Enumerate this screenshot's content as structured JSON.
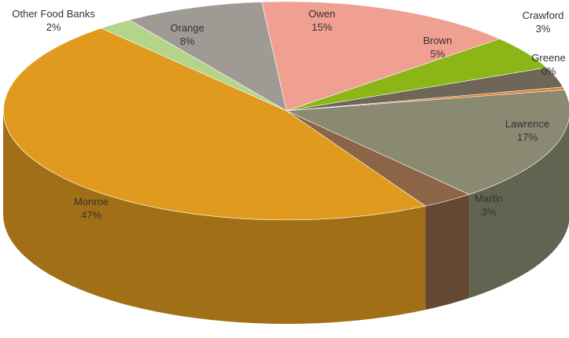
{
  "chart_data": {
    "type": "pie",
    "style": "3d",
    "title": "",
    "slices": [
      {
        "label": "Owen",
        "value": 15,
        "pct_label": "15%",
        "color": "#f0a090"
      },
      {
        "label": "Brown",
        "value": 5,
        "pct_label": "5%",
        "color": "#8cb516"
      },
      {
        "label": "Crawford",
        "value": 3,
        "pct_label": "3%",
        "color": "#6e6658"
      },
      {
        "label": "Greene",
        "value": 0.4,
        "pct_label": "0%",
        "color": "#e0781e"
      },
      {
        "label": "Lawrence",
        "value": 17,
        "pct_label": "17%",
        "color": "#8a8a72"
      },
      {
        "label": "Martin",
        "value": 3,
        "pct_label": "3%",
        "color": "#8c6446"
      },
      {
        "label": "Monroe",
        "value": 47,
        "pct_label": "47%",
        "color": "#e09a1e"
      },
      {
        "label": "Other Food Banks",
        "value": 2,
        "pct_label": "2%",
        "color": "#b4d48a"
      },
      {
        "label": "Orange",
        "value": 8,
        "pct_label": "8%",
        "color": "#a09a94"
      }
    ]
  }
}
